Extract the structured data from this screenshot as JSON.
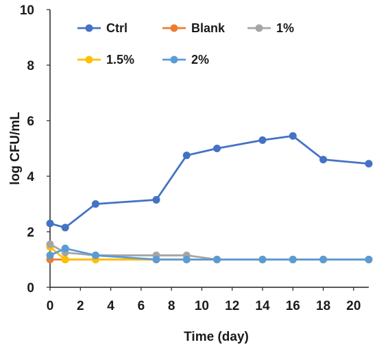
{
  "chart_data": {
    "type": "line",
    "xlabel": "Time (day)",
    "ylabel": "log CFU/mL",
    "xlim": [
      0,
      21
    ],
    "ylim": [
      0,
      10
    ],
    "xticks": [
      0,
      2,
      4,
      6,
      8,
      10,
      12,
      14,
      16,
      18,
      20
    ],
    "yticks": [
      0,
      2,
      4,
      6,
      8,
      10
    ],
    "grid": false,
    "legend_position": "top",
    "series": [
      {
        "name": "Ctrl",
        "color": "#4472C4",
        "x": [
          0,
          1,
          3,
          7,
          9,
          11,
          14,
          16,
          18,
          21
        ],
        "y": [
          2.3,
          2.15,
          3.0,
          3.15,
          4.75,
          5.0,
          5.3,
          5.45,
          4.6,
          4.45
        ]
      },
      {
        "name": "Blank",
        "color": "#ED7D31",
        "x": [
          0,
          1,
          3,
          7,
          9,
          11,
          14,
          16,
          18,
          21
        ],
        "y": [
          1.0,
          1.0,
          1.0,
          1.0,
          1.0,
          1.0,
          1.0,
          1.0,
          1.0,
          1.0
        ]
      },
      {
        "name": "1%",
        "color": "#A5A5A5",
        "x": [
          0,
          1,
          3,
          7,
          9,
          11,
          14,
          16,
          18,
          21
        ],
        "y": [
          1.55,
          1.25,
          1.15,
          1.15,
          1.15,
          1.0,
          1.0,
          1.0,
          1.0,
          1.0
        ]
      },
      {
        "name": "1.5%",
        "color": "#FFC000",
        "x": [
          0,
          1,
          3,
          7,
          9,
          11,
          14,
          16,
          18,
          21
        ],
        "y": [
          1.45,
          1.0,
          1.0,
          1.0,
          1.0,
          1.0,
          1.0,
          1.0,
          1.0,
          1.0
        ]
      },
      {
        "name": "2%",
        "color": "#5B9BD5",
        "x": [
          0,
          1,
          3,
          7,
          9,
          11,
          14,
          16,
          18,
          21
        ],
        "y": [
          1.15,
          1.4,
          1.15,
          1.0,
          1.0,
          1.0,
          1.0,
          1.0,
          1.0,
          1.0
        ]
      }
    ]
  }
}
